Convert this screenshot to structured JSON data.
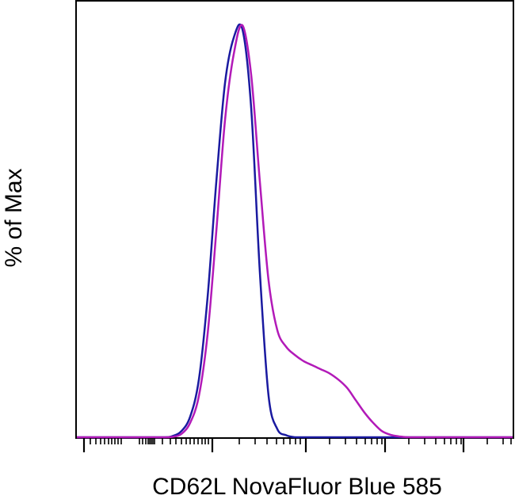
{
  "chart_data": {
    "type": "line",
    "title": "",
    "xlabel": "CD62L NovaFluor Blue 585",
    "ylabel": "% of Max",
    "xscale": "biexponential",
    "x_tick_labels": [],
    "y_tick_labels": [],
    "ylim": [
      0,
      100
    ],
    "grid": false,
    "legend": "none",
    "x": [
      0,
      0.05,
      0.1,
      0.15,
      0.2,
      0.22,
      0.24,
      0.26,
      0.28,
      0.3,
      0.32,
      0.34,
      0.36,
      0.38,
      0.4,
      0.42,
      0.44,
      0.46,
      0.48,
      0.5,
      0.52,
      0.54,
      0.56,
      0.58,
      0.6,
      0.62,
      0.64,
      0.66,
      0.68,
      0.7,
      0.72,
      0.74,
      0.76,
      0.78,
      0.8,
      0.82,
      0.84,
      0.86,
      0.88,
      0.9,
      0.95,
      1.0
    ],
    "series": [
      {
        "color": "#1a1aa0",
        "values": [
          0,
          0,
          0,
          0,
          0,
          0.3,
          1.5,
          5,
          14,
          34,
          62,
          86,
          97,
          99,
          80,
          40,
          10,
          2,
          0.5,
          0,
          0,
          0,
          0,
          0,
          0,
          0,
          0,
          0,
          0,
          0,
          0,
          0,
          0,
          0,
          0,
          0,
          0,
          0,
          0,
          0,
          0,
          0
        ]
      },
      {
        "color": "#b21ab8",
        "values": [
          0,
          0,
          0,
          0,
          0,
          0.1,
          0.8,
          3.5,
          10,
          25,
          50,
          77,
          93,
          100,
          88,
          62,
          38,
          26,
          22,
          20,
          18.5,
          17.5,
          16.5,
          15.5,
          14,
          12,
          9,
          6,
          3.5,
          1.5,
          0.6,
          0.2,
          0,
          0,
          0,
          0,
          0,
          0,
          0,
          0,
          0,
          0
        ]
      }
    ]
  }
}
